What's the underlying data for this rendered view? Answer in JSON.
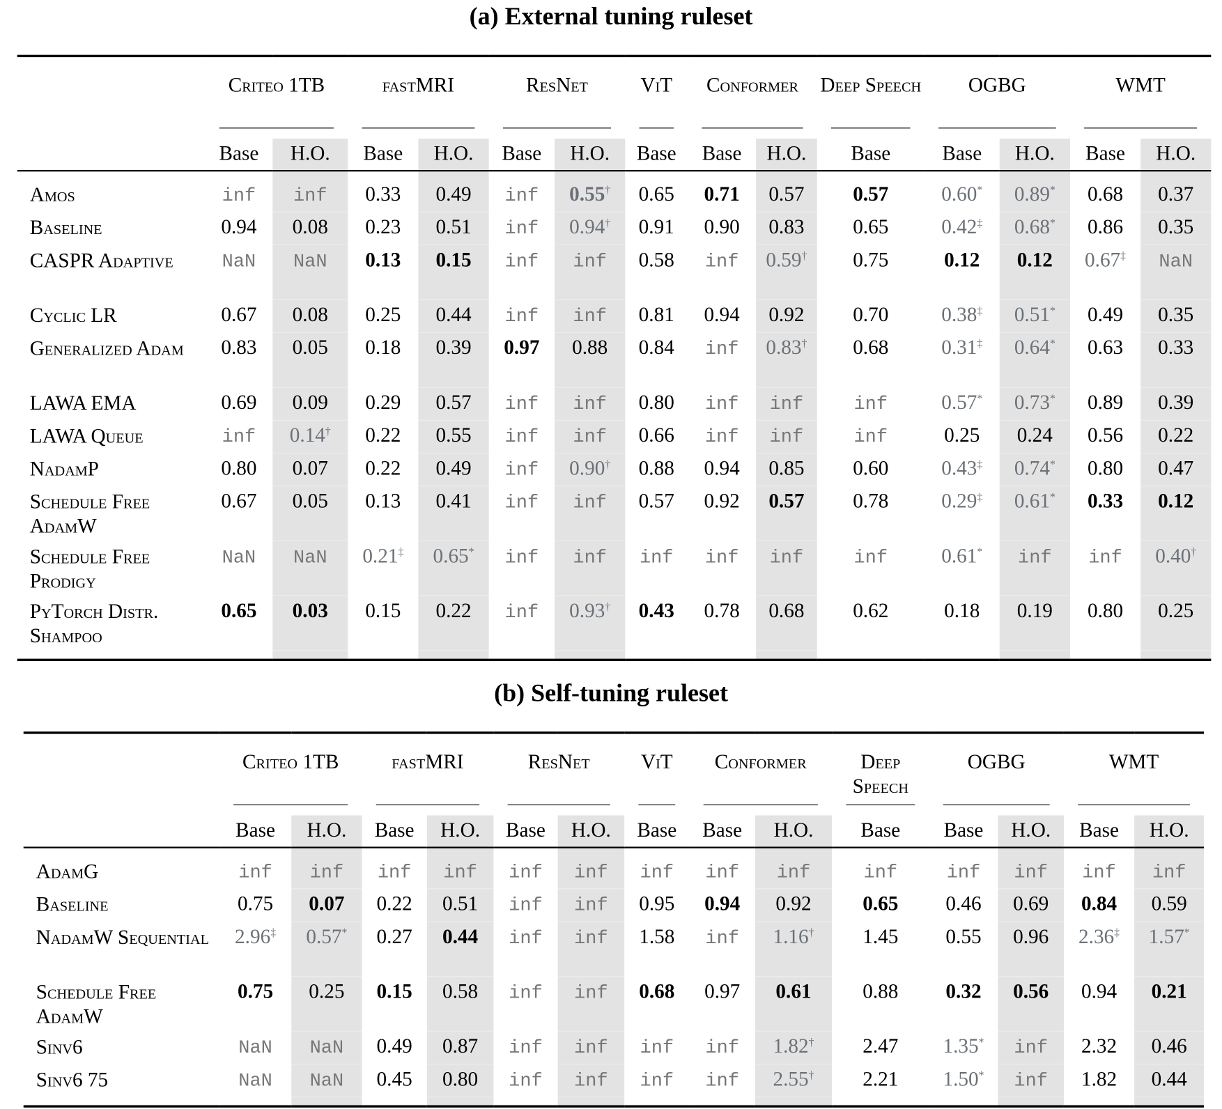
{
  "tables": [
    {
      "title": "(a) External tuning ruleset",
      "groups": [
        {
          "label": "Criteo 1TB",
          "span": 2
        },
        {
          "label": "fastMRI",
          "span": 2
        },
        {
          "label": "ResNet",
          "span": 2
        },
        {
          "label": "ViT",
          "span": 1
        },
        {
          "label": "Conformer",
          "span": 2
        },
        {
          "label": "Deep Speech",
          "span": 1
        },
        {
          "label": "OGBG",
          "span": 2
        },
        {
          "label": "WMT",
          "span": 2
        }
      ],
      "subheaders": [
        "Base",
        "H.O.",
        "Base",
        "H.O.",
        "Base",
        "H.O.",
        "Base",
        "Base",
        "H.O.",
        "Base",
        "Base",
        "H.O.",
        "Base",
        "H.O."
      ],
      "rows": [
        {
          "name": "Amos",
          "cells": [
            {
              "v": "inf"
            },
            {
              "v": "inf"
            },
            {
              "v": "0.33"
            },
            {
              "v": "0.49"
            },
            {
              "v": "inf"
            },
            {
              "v": "0.55",
              "sup": "†",
              "bold": true
            },
            {
              "v": "0.65"
            },
            {
              "v": "0.71",
              "bold": true
            },
            {
              "v": "0.57"
            },
            {
              "v": "0.57",
              "bold": true
            },
            {
              "v": "0.60",
              "sup": "*"
            },
            {
              "v": "0.89",
              "sup": "*"
            },
            {
              "v": "0.68"
            },
            {
              "v": "0.37"
            }
          ]
        },
        {
          "name": "Baseline",
          "cells": [
            {
              "v": "0.94"
            },
            {
              "v": "0.08"
            },
            {
              "v": "0.23"
            },
            {
              "v": "0.51"
            },
            {
              "v": "inf"
            },
            {
              "v": "0.94",
              "sup": "†"
            },
            {
              "v": "0.91"
            },
            {
              "v": "0.90"
            },
            {
              "v": "0.83"
            },
            {
              "v": "0.65"
            },
            {
              "v": "0.42",
              "sup": "‡"
            },
            {
              "v": "0.68",
              "sup": "*"
            },
            {
              "v": "0.86"
            },
            {
              "v": "0.35"
            }
          ]
        },
        {
          "name": "CASPR Adaptive",
          "tall": true,
          "cells": [
            {
              "v": "NaN"
            },
            {
              "v": "NaN"
            },
            {
              "v": "0.13",
              "bold": true
            },
            {
              "v": "0.15",
              "bold": true
            },
            {
              "v": "inf"
            },
            {
              "v": "inf"
            },
            {
              "v": "0.58"
            },
            {
              "v": "inf"
            },
            {
              "v": "0.59",
              "sup": "†"
            },
            {
              "v": "0.75"
            },
            {
              "v": "0.12",
              "bold": true
            },
            {
              "v": "0.12",
              "bold": true
            },
            {
              "v": "0.67",
              "sup": "‡"
            },
            {
              "v": "NaN"
            }
          ]
        },
        {
          "name": "Cyclic LR",
          "cells": [
            {
              "v": "0.67"
            },
            {
              "v": "0.08"
            },
            {
              "v": "0.25"
            },
            {
              "v": "0.44"
            },
            {
              "v": "inf"
            },
            {
              "v": "inf"
            },
            {
              "v": "0.81"
            },
            {
              "v": "0.94"
            },
            {
              "v": "0.92"
            },
            {
              "v": "0.70"
            },
            {
              "v": "0.38",
              "sup": "‡"
            },
            {
              "v": "0.51",
              "sup": "*"
            },
            {
              "v": "0.49"
            },
            {
              "v": "0.35"
            }
          ]
        },
        {
          "name": "Generalized Adam",
          "tall": true,
          "cells": [
            {
              "v": "0.83"
            },
            {
              "v": "0.05"
            },
            {
              "v": "0.18"
            },
            {
              "v": "0.39"
            },
            {
              "v": "0.97",
              "bold": true
            },
            {
              "v": "0.88"
            },
            {
              "v": "0.84"
            },
            {
              "v": "inf"
            },
            {
              "v": "0.83",
              "sup": "†"
            },
            {
              "v": "0.68"
            },
            {
              "v": "0.31",
              "sup": "‡"
            },
            {
              "v": "0.64",
              "sup": "*"
            },
            {
              "v": "0.63"
            },
            {
              "v": "0.33"
            }
          ]
        },
        {
          "name": "LAWA EMA",
          "cells": [
            {
              "v": "0.69"
            },
            {
              "v": "0.09"
            },
            {
              "v": "0.29"
            },
            {
              "v": "0.57"
            },
            {
              "v": "inf"
            },
            {
              "v": "inf"
            },
            {
              "v": "0.80"
            },
            {
              "v": "inf"
            },
            {
              "v": "inf"
            },
            {
              "v": "inf"
            },
            {
              "v": "0.57",
              "sup": "*"
            },
            {
              "v": "0.73",
              "sup": "*"
            },
            {
              "v": "0.89"
            },
            {
              "v": "0.39"
            }
          ]
        },
        {
          "name": "LAWA Queue",
          "cells": [
            {
              "v": "inf"
            },
            {
              "v": "0.14",
              "sup": "†"
            },
            {
              "v": "0.22"
            },
            {
              "v": "0.55"
            },
            {
              "v": "inf"
            },
            {
              "v": "inf"
            },
            {
              "v": "0.66"
            },
            {
              "v": "inf"
            },
            {
              "v": "inf"
            },
            {
              "v": "inf"
            },
            {
              "v": "0.25"
            },
            {
              "v": "0.24"
            },
            {
              "v": "0.56"
            },
            {
              "v": "0.22"
            }
          ]
        },
        {
          "name": "NadamP",
          "cells": [
            {
              "v": "0.80"
            },
            {
              "v": "0.07"
            },
            {
              "v": "0.22"
            },
            {
              "v": "0.49"
            },
            {
              "v": "inf"
            },
            {
              "v": "0.90",
              "sup": "†"
            },
            {
              "v": "0.88"
            },
            {
              "v": "0.94"
            },
            {
              "v": "0.85"
            },
            {
              "v": "0.60"
            },
            {
              "v": "0.43",
              "sup": "‡"
            },
            {
              "v": "0.74",
              "sup": "*"
            },
            {
              "v": "0.80"
            },
            {
              "v": "0.47"
            }
          ]
        },
        {
          "name": "Schedule Free AdamW",
          "tall": true,
          "cells": [
            {
              "v": "0.67"
            },
            {
              "v": "0.05"
            },
            {
              "v": "0.13"
            },
            {
              "v": "0.41"
            },
            {
              "v": "inf"
            },
            {
              "v": "inf"
            },
            {
              "v": "0.57"
            },
            {
              "v": "0.92"
            },
            {
              "v": "0.57",
              "bold": true
            },
            {
              "v": "0.78"
            },
            {
              "v": "0.29",
              "sup": "‡"
            },
            {
              "v": "0.61",
              "sup": "*"
            },
            {
              "v": "0.33",
              "bold": true
            },
            {
              "v": "0.12",
              "bold": true
            }
          ]
        },
        {
          "name": "Schedule Free Prodigy",
          "tall": true,
          "cells": [
            {
              "v": "NaN"
            },
            {
              "v": "NaN"
            },
            {
              "v": "0.21",
              "sup": "‡"
            },
            {
              "v": "0.65",
              "sup": "*"
            },
            {
              "v": "inf"
            },
            {
              "v": "inf"
            },
            {
              "v": "inf"
            },
            {
              "v": "inf"
            },
            {
              "v": "inf"
            },
            {
              "v": "inf"
            },
            {
              "v": "0.61",
              "sup": "*"
            },
            {
              "v": "inf"
            },
            {
              "v": "inf"
            },
            {
              "v": "0.40",
              "sup": "†"
            }
          ]
        },
        {
          "name": "PyTorch Distr. Shampoo",
          "tall": true,
          "cells": [
            {
              "v": "0.65",
              "bold": true
            },
            {
              "v": "0.03",
              "bold": true
            },
            {
              "v": "0.15"
            },
            {
              "v": "0.22"
            },
            {
              "v": "inf"
            },
            {
              "v": "0.93",
              "sup": "†"
            },
            {
              "v": "0.43",
              "bold": true
            },
            {
              "v": "0.78"
            },
            {
              "v": "0.68"
            },
            {
              "v": "0.62"
            },
            {
              "v": "0.18"
            },
            {
              "v": "0.19"
            },
            {
              "v": "0.80"
            },
            {
              "v": "0.25"
            }
          ]
        }
      ]
    },
    {
      "title": "(b) Self-tuning ruleset",
      "groups": [
        {
          "label": "Criteo 1TB",
          "span": 2
        },
        {
          "label": "fastMRI",
          "span": 2
        },
        {
          "label": "ResNet",
          "span": 2
        },
        {
          "label": "ViT",
          "span": 1
        },
        {
          "label": "Conformer",
          "span": 2
        },
        {
          "label": "Deep Speech",
          "span": 1
        },
        {
          "label": "OGBG",
          "span": 2
        },
        {
          "label": "WMT",
          "span": 2
        }
      ],
      "subheaders": [
        "Base",
        "H.O.",
        "Base",
        "H.O.",
        "Base",
        "H.O.",
        "Base",
        "Base",
        "H.O.",
        "Base",
        "Base",
        "H.O.",
        "Base",
        "H.O."
      ],
      "rows": [
        {
          "name": "AdamG",
          "cells": [
            {
              "v": "inf"
            },
            {
              "v": "inf"
            },
            {
              "v": "inf"
            },
            {
              "v": "inf"
            },
            {
              "v": "inf"
            },
            {
              "v": "inf"
            },
            {
              "v": "inf"
            },
            {
              "v": "inf"
            },
            {
              "v": "inf"
            },
            {
              "v": "inf"
            },
            {
              "v": "inf"
            },
            {
              "v": "inf"
            },
            {
              "v": "inf"
            },
            {
              "v": "inf"
            }
          ]
        },
        {
          "name": "Baseline",
          "cells": [
            {
              "v": "0.75"
            },
            {
              "v": "0.07",
              "bold": true
            },
            {
              "v": "0.22"
            },
            {
              "v": "0.51"
            },
            {
              "v": "inf"
            },
            {
              "v": "inf"
            },
            {
              "v": "0.95"
            },
            {
              "v": "0.94",
              "bold": true
            },
            {
              "v": "0.92"
            },
            {
              "v": "0.65",
              "bold": true
            },
            {
              "v": "0.46"
            },
            {
              "v": "0.69"
            },
            {
              "v": "0.84",
              "bold": true
            },
            {
              "v": "0.59"
            }
          ]
        },
        {
          "name": "NadamW Sequential",
          "tall": true,
          "cells": [
            {
              "v": "2.96",
              "sup": "‡"
            },
            {
              "v": "0.57",
              "sup": "*"
            },
            {
              "v": "0.27"
            },
            {
              "v": "0.44",
              "bold": true
            },
            {
              "v": "inf"
            },
            {
              "v": "inf"
            },
            {
              "v": "1.58"
            },
            {
              "v": "inf"
            },
            {
              "v": "1.16",
              "sup": "†"
            },
            {
              "v": "1.45"
            },
            {
              "v": "0.55"
            },
            {
              "v": "0.96"
            },
            {
              "v": "2.36",
              "sup": "‡"
            },
            {
              "v": "1.57",
              "sup": "*"
            }
          ]
        },
        {
          "name": "Schedule Free AdamW",
          "tall": true,
          "cells": [
            {
              "v": "0.75",
              "bold": true
            },
            {
              "v": "0.25"
            },
            {
              "v": "0.15",
              "bold": true
            },
            {
              "v": "0.58"
            },
            {
              "v": "inf"
            },
            {
              "v": "inf"
            },
            {
              "v": "0.68",
              "bold": true
            },
            {
              "v": "0.97"
            },
            {
              "v": "0.61",
              "bold": true
            },
            {
              "v": "0.88"
            },
            {
              "v": "0.32",
              "bold": true
            },
            {
              "v": "0.56",
              "bold": true
            },
            {
              "v": "0.94"
            },
            {
              "v": "0.21",
              "bold": true
            }
          ]
        },
        {
          "name": "Sinv6",
          "cells": [
            {
              "v": "NaN"
            },
            {
              "v": "NaN"
            },
            {
              "v": "0.49"
            },
            {
              "v": "0.87"
            },
            {
              "v": "inf"
            },
            {
              "v": "inf"
            },
            {
              "v": "inf"
            },
            {
              "v": "inf"
            },
            {
              "v": "1.82",
              "sup": "†"
            },
            {
              "v": "2.47"
            },
            {
              "v": "1.35",
              "sup": "*"
            },
            {
              "v": "inf"
            },
            {
              "v": "2.32"
            },
            {
              "v": "0.46"
            }
          ]
        },
        {
          "name": "Sinv6 75",
          "cells": [
            {
              "v": "NaN"
            },
            {
              "v": "NaN"
            },
            {
              "v": "0.45"
            },
            {
              "v": "0.80"
            },
            {
              "v": "inf"
            },
            {
              "v": "inf"
            },
            {
              "v": "inf"
            },
            {
              "v": "inf"
            },
            {
              "v": "2.55",
              "sup": "†"
            },
            {
              "v": "2.21"
            },
            {
              "v": "1.50",
              "sup": "*"
            },
            {
              "v": "inf"
            },
            {
              "v": "1.82"
            },
            {
              "v": "0.44"
            }
          ]
        }
      ]
    }
  ]
}
